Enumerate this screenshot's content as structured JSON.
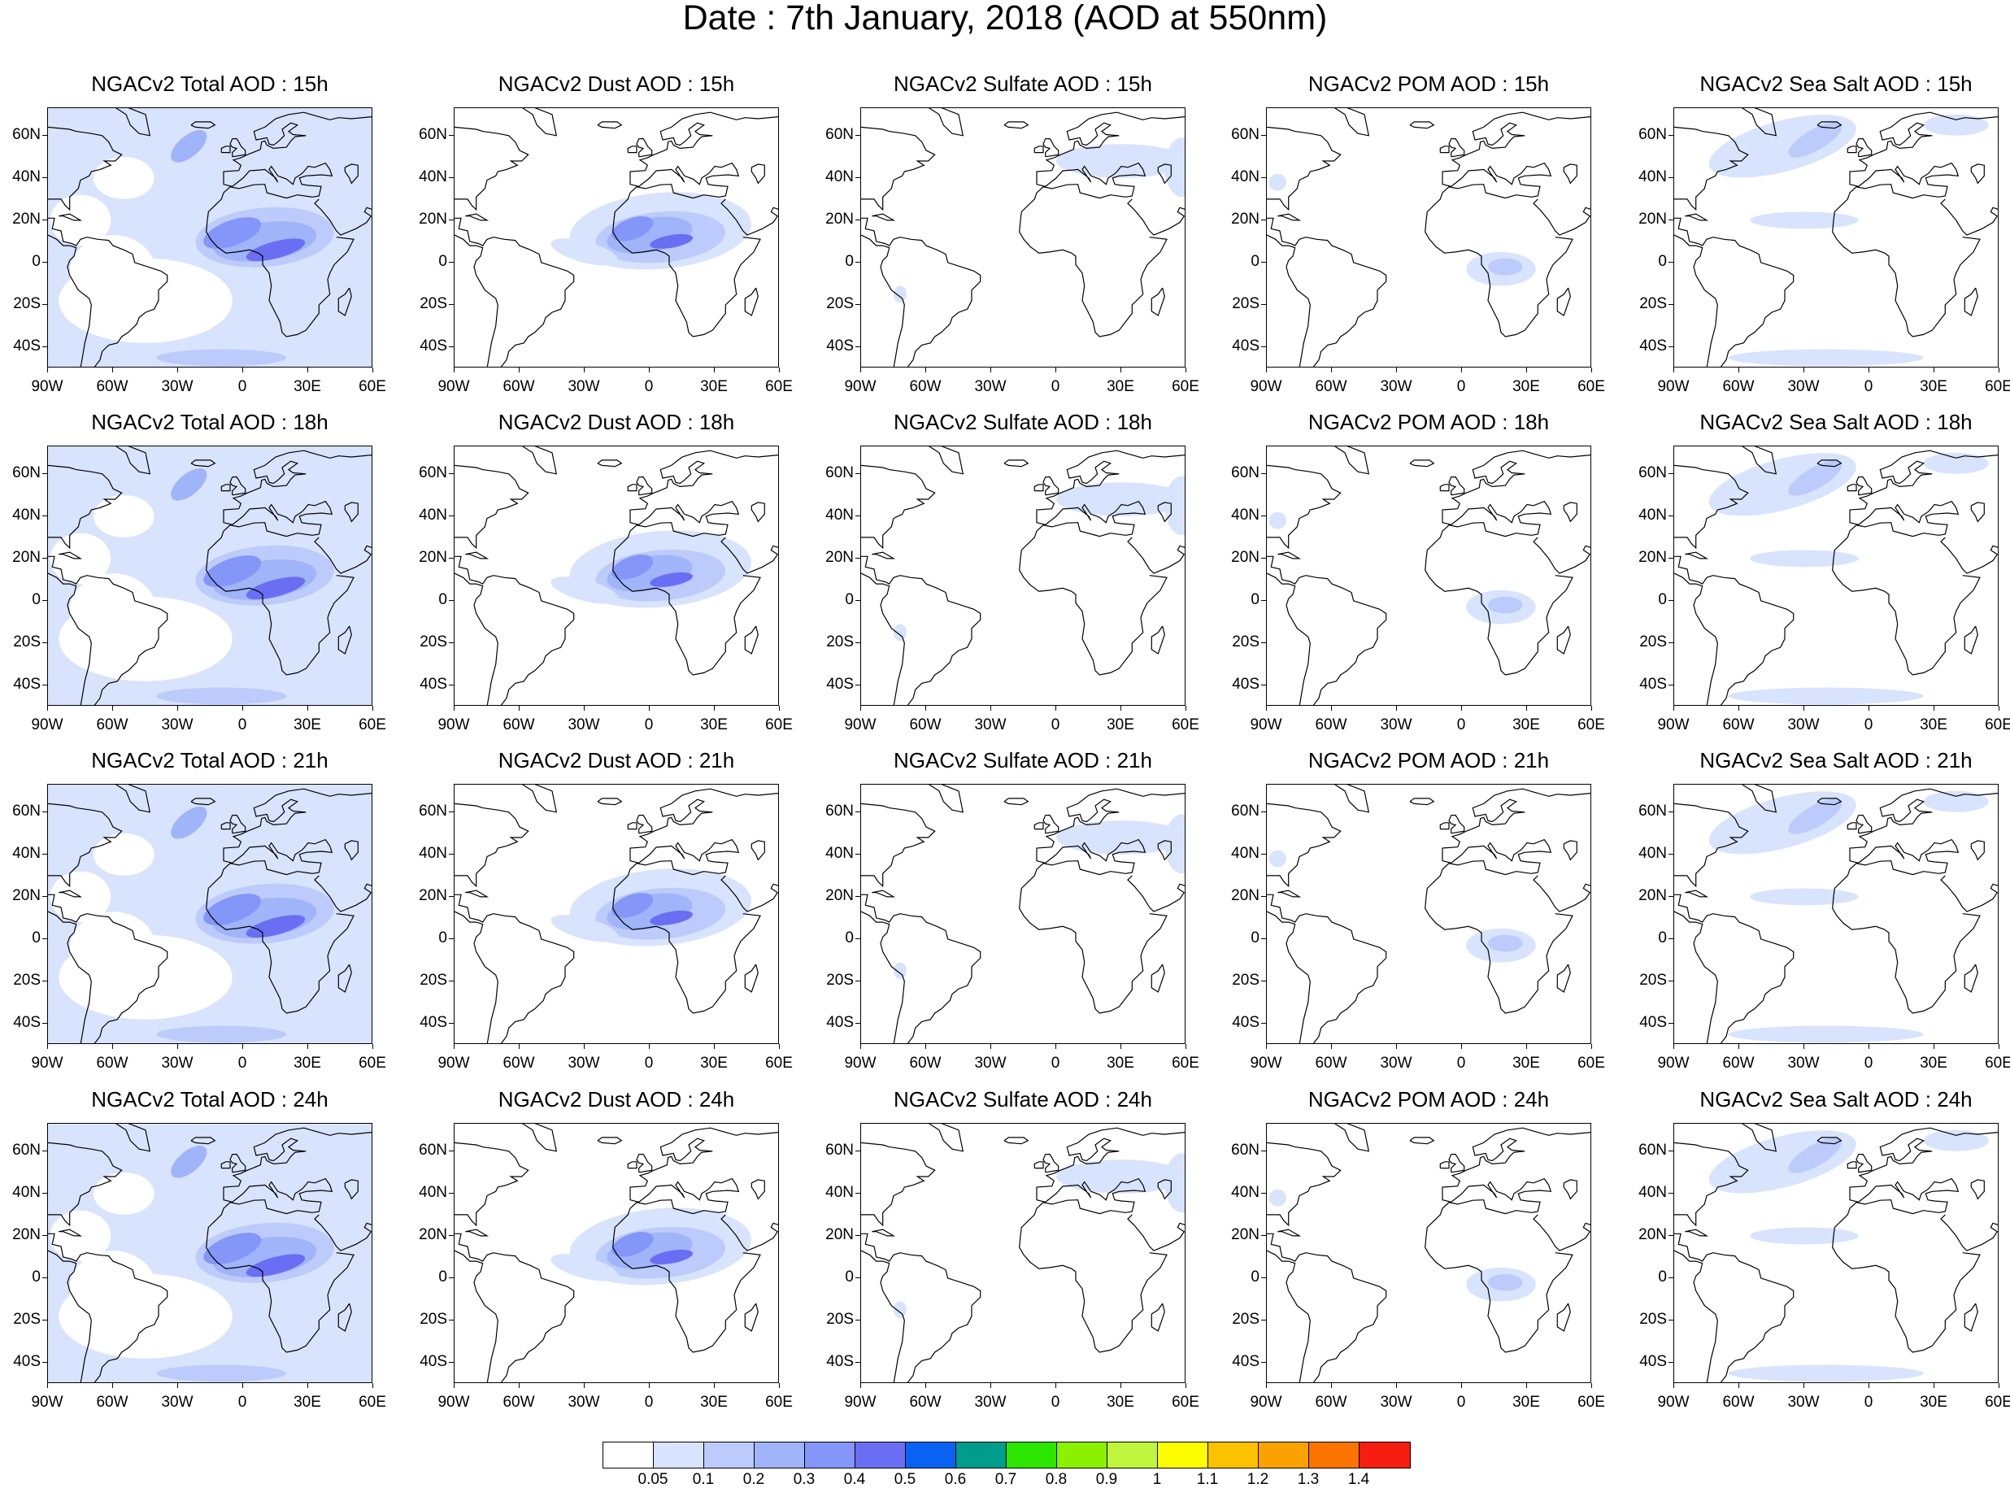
{
  "title": "Date : 7th January, 2018 (AOD at 550nm)",
  "map_panels": [
    [
      "NGACv2 Total AOD : 15h",
      "NGACv2 Dust AOD : 15h",
      "NGACv2 Sulfate AOD : 15h",
      "NGACv2 POM AOD : 15h",
      "NGACv2 Sea Salt AOD : 15h"
    ],
    [
      "NGACv2 Total AOD : 18h",
      "NGACv2 Dust AOD : 18h",
      "NGACv2 Sulfate AOD : 18h",
      "NGACv2 POM AOD : 18h",
      "NGACv2 Sea Salt AOD : 18h"
    ],
    [
      "NGACv2 Total AOD : 21h",
      "NGACv2 Dust AOD : 21h",
      "NGACv2 Sulfate AOD : 21h",
      "NGACv2 POM AOD : 21h",
      "NGACv2 Sea Salt AOD : 21h"
    ],
    [
      "NGACv2 Total AOD : 24h",
      "NGACv2 Dust AOD : 24h",
      "NGACv2 Sulfate AOD : 24h",
      "NGACv2 POM AOD : 24h",
      "NGACv2 Sea Salt  AOD : 24h"
    ]
  ],
  "latitude_ticks": [
    "60N",
    "40N",
    "20N",
    "0",
    "20S",
    "40S"
  ],
  "longitude_ticks": [
    "90W",
    "60W",
    "30W",
    "0",
    "30E",
    "60E"
  ],
  "colorbar": {
    "labels": [
      "0.05",
      "0.1",
      "0.2",
      "0.3",
      "0.4",
      "0.5",
      "0.6",
      "0.7",
      "0.8",
      "0.9",
      "1",
      "1.1",
      "1.2",
      "1.3",
      "1.4"
    ],
    "colors": [
      "#ffffff",
      "#d8e3fd",
      "#bccbfb",
      "#9fb4f9",
      "#8496f7",
      "#6a6ef3",
      "#0a62f2",
      "#009c8c",
      "#2ce600",
      "#8af200",
      "#c0f53d",
      "#fdfd00",
      "#fcc200",
      "#fca200",
      "#fb7400",
      "#f71d10"
    ]
  },
  "map_colors": {
    "land_outline": "#000000",
    "aod_light": "#d8e3fd",
    "aod_medium": "#bccbfb",
    "aod_strong": "#9fb4f9",
    "aod_heavy": "#8496f7",
    "aod_max": "#6a6ef3",
    "hotspot": "#2ce600"
  }
}
